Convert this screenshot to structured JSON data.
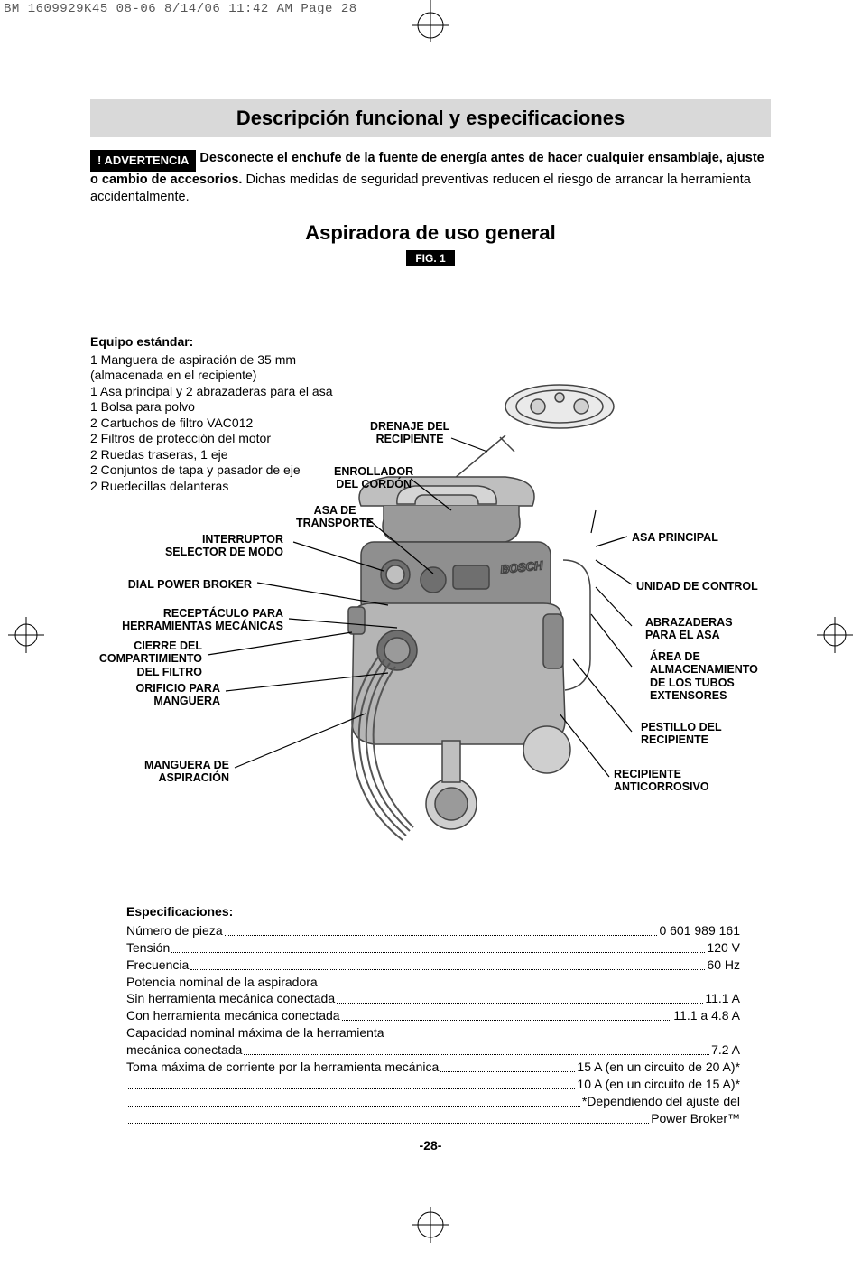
{
  "print_header": "BM 1609929K45 08-06  8/14/06  11:42 AM  Page 28",
  "title": "Descripción funcional y especificaciones",
  "warning_label": "! ADVERTENCIA",
  "warning_bold": "Desconecte el enchufe de la fuente de energía antes de hacer cualquier ensamblaje, ajuste o cambio de accesorios.",
  "warning_rest": " Dichas medidas de seguridad preventivas reducen el riesgo de arrancar la herramienta accidentalmente.",
  "subtitle": "Aspiradora de uso general",
  "fig_label": "FIG. 1",
  "equipo": {
    "header": "Equipo estándar:",
    "items": [
      "1 Manguera de aspiración de 35 mm",
      "   (almacenada en el recipiente)",
      "1 Asa principal y 2 abrazaderas para el asa",
      "1 Bolsa para polvo",
      "2 Cartuchos de filtro VAC012",
      "2 Filtros de protección del motor",
      "2 Ruedas traseras, 1 eje",
      "2 Conjuntos de tapa y pasador de eje",
      "2 Ruedecillas delanteras"
    ]
  },
  "labels_top": {
    "drenaje": "DRENAJE DEL\nRECIPIENTE",
    "enrollador": "ENROLLADOR\nDEL CORDÓN",
    "asa_transporte": "ASA DE\nTRANSPORTE"
  },
  "labels_left": {
    "interruptor": "INTERRUPTOR\nSELECTOR DE MODO",
    "dial": "DIAL POWER BROKER",
    "receptaculo": "RECEPTÁCULO PARA\nHERRAMIENTAS MECÁNICAS",
    "cierre": "CIERRE DEL\nCOMPARTIMIENTO\nDEL FILTRO",
    "orificio": "ORIFICIO PARA\nMANGUERA",
    "manguera": "MANGUERA DE\nASPIRACIÓN"
  },
  "labels_right": {
    "asa_principal": "ASA PRINCIPAL",
    "unidad": "UNIDAD DE CONTROL",
    "abrazaderas": "ABRAZADERAS\nPARA EL ASA",
    "area": "ÁREA DE\nALMACENAMIENTO\nDE LOS TUBOS\nEXTENSORES",
    "pestillo": "PESTILLO DEL\nRECIPIENTE",
    "recipiente": "RECIPIENTE\nANTICORROSIVO"
  },
  "specs": {
    "header": "Especificaciones:",
    "rows": [
      {
        "label": "Número de pieza",
        "value": "0 601 989 161"
      },
      {
        "label": "Tensión",
        "value": "120 V"
      },
      {
        "label": "Frecuencia",
        "value": "60 Hz"
      },
      {
        "label": "Potencia nominal de la aspiradora",
        "value": ""
      },
      {
        "label": "Sin herramienta mecánica conectada",
        "value": "11.1 A"
      },
      {
        "label": "Con herramienta mecánica conectada",
        "value": "11.1 a 4.8 A"
      },
      {
        "label": "Capacidad nominal máxima de la herramienta",
        "value": ""
      },
      {
        "label": "mecánica conectada",
        "value": "7.2 A"
      },
      {
        "label": "Toma máxima de corriente por la herramienta mecánica",
        "value": "15 A (en un circuito de 20 A)*"
      },
      {
        "label": "",
        "value": "10 A (en un circuito de 15 A)*"
      },
      {
        "label": "",
        "value": "*Dependiendo del ajuste del"
      },
      {
        "label": "",
        "value": "Power Broker™"
      }
    ]
  },
  "page_number": "-28-",
  "colors": {
    "bg": "#ffffff",
    "text": "#000000",
    "titlebar_bg": "#d9d9d9",
    "badge_bg": "#000000",
    "badge_fg": "#ffffff",
    "diagram_stroke": "#444444",
    "diagram_fill_light": "#bfbfbf",
    "diagram_fill_mid": "#9a9a9a",
    "diagram_fill_dark": "#6f6f6f"
  }
}
